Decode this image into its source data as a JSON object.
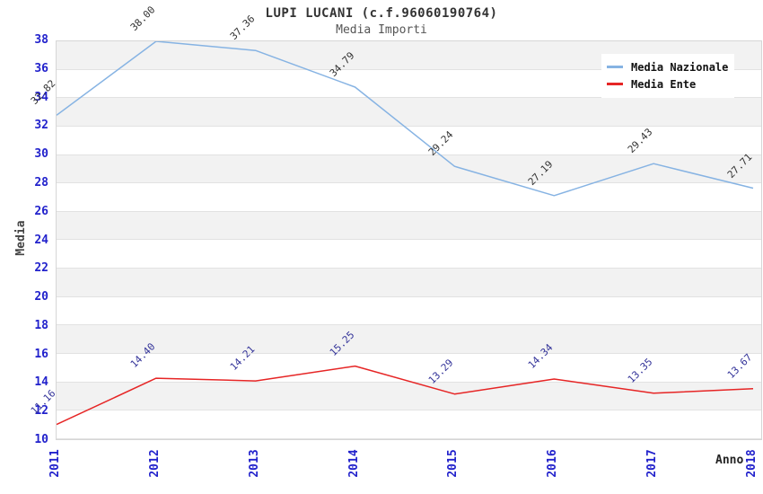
{
  "header": {
    "title": "LUPI LUCANI (c.f.96060190764)",
    "subtitle": "Media Importi"
  },
  "chart_data": {
    "type": "line",
    "categories": [
      "2011",
      "2012",
      "2013",
      "2014",
      "2015",
      "2016",
      "2017",
      "2018"
    ],
    "series": [
      {
        "name": "Media Nazionale",
        "values": [
          32.82,
          38.0,
          37.36,
          34.79,
          29.24,
          27.19,
          29.43,
          27.71
        ],
        "line_color": "#86b3e3",
        "label_color": "#333333"
      },
      {
        "name": "Media Ente",
        "values": [
          11.16,
          14.4,
          14.21,
          15.25,
          13.29,
          14.34,
          13.35,
          13.67
        ],
        "line_color": "#e62525",
        "label_color": "#333399"
      }
    ],
    "xlabel": "Anno",
    "ylabel": "Media",
    "ylim": [
      10,
      38
    ],
    "ytick_step": 2,
    "yticks": [
      "38",
      "36",
      "34",
      "32",
      "30",
      "28",
      "26",
      "24",
      "22",
      "20",
      "18",
      "16",
      "14",
      "12",
      "10"
    ],
    "value_label_decimals": 2,
    "legend_position": "top-right",
    "grid": "horizontal-bands-alternating",
    "band_color": "#f2f2f2",
    "gridline_color": "#e2e2e2",
    "tick_label_color": "#2222cc"
  }
}
